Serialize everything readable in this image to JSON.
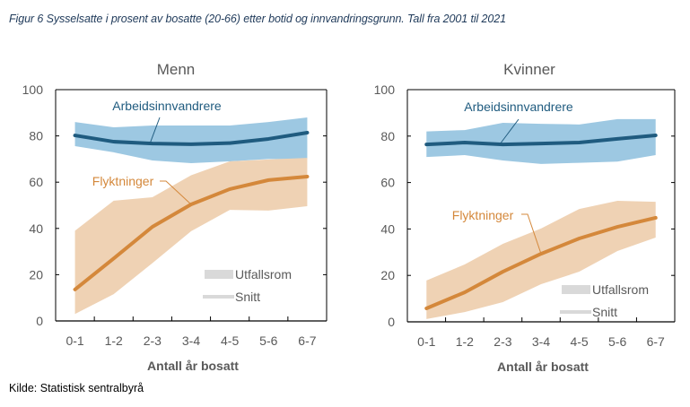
{
  "figure": {
    "title": "Figur 6  Sysselsatte i prosent av bosatte (20-66) etter botid og innvandringsgrunn. Tall fra 2001 til 2021",
    "source": "Kilde: Statistisk sentralbyrå"
  },
  "colors": {
    "arbeid_line": "#1f5b7f",
    "arbeid_band": "#9dc8e2",
    "flykt_line": "#d4883b",
    "flykt_band": "#efd2b4",
    "legend_gray": "#d9d9d9",
    "axis_text": "#595959"
  },
  "chart_data": [
    {
      "type": "area",
      "title": "Menn",
      "xlabel": "Antall år bosatt",
      "ylabel": "",
      "categories": [
        "0-1",
        "1-2",
        "2-3",
        "3-4",
        "4-5",
        "5-6",
        "6-7"
      ],
      "yticks": [
        0,
        20,
        40,
        60,
        80,
        100
      ],
      "ylim": [
        0,
        100
      ],
      "grid": false,
      "legend": {
        "position": "bottom-right",
        "entries": [
          "Utfallsrom",
          "Snitt"
        ]
      },
      "series": [
        {
          "name": "Arbeidsinnvandrere",
          "mean": [
            80.2,
            77.5,
            76.7,
            76.4,
            76.9,
            78.7,
            81.4
          ],
          "range_low": [
            75.6,
            72.9,
            69.4,
            68.2,
            69.0,
            70.0,
            70.0
          ],
          "range_high": [
            86.0,
            83.7,
            84.5,
            84.5,
            84.5,
            86.0,
            88.0
          ]
        },
        {
          "name": "Flyktninger",
          "mean": [
            13.6,
            27.0,
            40.7,
            50.4,
            57.0,
            60.9,
            62.4
          ],
          "range_low": [
            3.0,
            11.6,
            25.0,
            38.8,
            48.0,
            47.7,
            49.6
          ],
          "range_high": [
            39.0,
            52.0,
            53.5,
            63.0,
            69.0,
            69.8,
            70.5
          ]
        }
      ],
      "annotations": [
        {
          "text": "Arbeidsinnvandrere",
          "series": "Arbeidsinnvandrere",
          "points_to": "2-3"
        },
        {
          "text": "Flyktninger",
          "series": "Flyktninger",
          "points_to": "3-4"
        }
      ]
    },
    {
      "type": "area",
      "title": "Kvinner",
      "xlabel": "Antall år bosatt",
      "ylabel": "",
      "categories": [
        "0-1",
        "1-2",
        "2-3",
        "3-4",
        "4-5",
        "5-6",
        "6-7"
      ],
      "yticks": [
        0,
        20,
        40,
        60,
        80,
        100
      ],
      "ylim": [
        0,
        100
      ],
      "grid": false,
      "legend": {
        "position": "bottom-right",
        "entries": [
          "Utfallsrom",
          "Snitt"
        ]
      },
      "series": [
        {
          "name": "Arbeidsinnvandrere",
          "mean": [
            76.4,
            77.2,
            76.4,
            76.8,
            77.2,
            78.8,
            80.3
          ],
          "range_low": [
            71.0,
            71.8,
            69.5,
            68.0,
            68.5,
            69.0,
            71.8
          ],
          "range_high": [
            82.0,
            82.6,
            85.7,
            85.3,
            85.0,
            87.3,
            87.3
          ]
        },
        {
          "name": "Flyktninger",
          "mean": [
            5.8,
            12.7,
            21.6,
            29.3,
            35.9,
            40.9,
            44.8
          ],
          "range_low": [
            1.2,
            4.2,
            8.5,
            16.2,
            21.6,
            30.5,
            36.3
          ],
          "range_high": [
            17.8,
            24.7,
            33.6,
            40.2,
            48.6,
            52.1,
            51.7
          ]
        }
      ],
      "annotations": [
        {
          "text": "Arbeidsinnvandrere",
          "series": "Arbeidsinnvandrere",
          "points_to": "2-3"
        },
        {
          "text": "Flyktninger",
          "series": "Flyktninger",
          "points_to": "3-4"
        }
      ]
    }
  ]
}
